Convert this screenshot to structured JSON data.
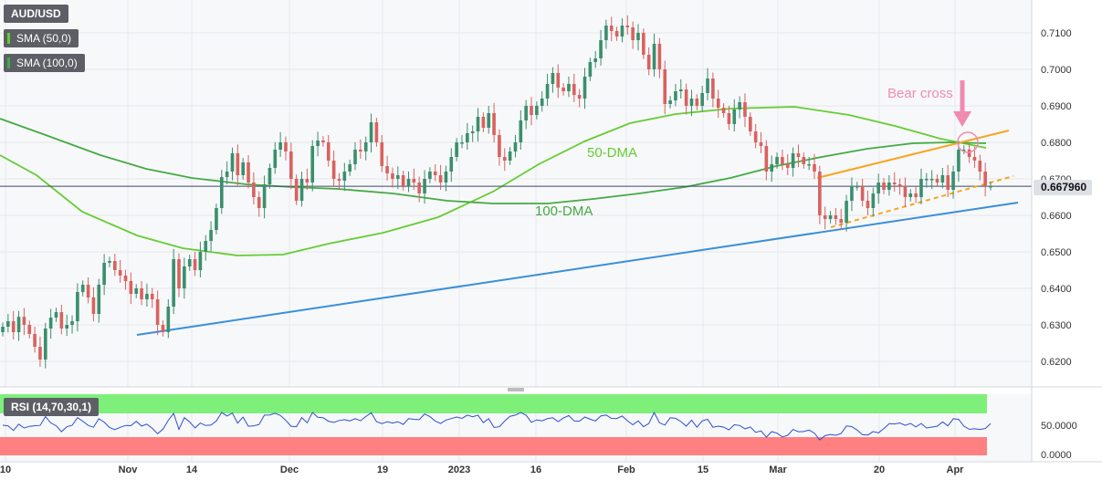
{
  "chart_data": {
    "type": "candlestick",
    "symbol": "AUD/USD",
    "indicators": [
      {
        "name": "SMA (50,0)",
        "color": "#66cc33"
      },
      {
        "name": "SMA (100,0)",
        "color": "#44aa44"
      }
    ],
    "current_price": "0.667960",
    "y_ticks": [
      "0.7100",
      "0.7000",
      "0.6900",
      "0.6800",
      "0.6700",
      "0.6600",
      "0.6500",
      "0.6400",
      "0.6300",
      "0.6200"
    ],
    "ylim": [
      0.617,
      0.7165
    ],
    "x_ticks": [
      "10",
      "Nov",
      "14",
      "Dec",
      "19",
      "2023",
      "16",
      "Feb",
      "15",
      "Mar",
      "20",
      "Apr"
    ],
    "annotations": {
      "bear_cross": "Bear cross",
      "dma50": "50-DMA",
      "dma100": "100-DMA"
    },
    "closes": [
      0.6295,
      0.631,
      0.628,
      0.6322,
      0.63,
      0.6275,
      0.624,
      0.6205,
      0.629,
      0.632,
      0.6335,
      0.629,
      0.63,
      0.631,
      0.639,
      0.641,
      0.6375,
      0.633,
      0.641,
      0.647,
      0.6475,
      0.645,
      0.6435,
      0.642,
      0.6385,
      0.64,
      0.637,
      0.6385,
      0.637,
      0.63,
      0.628,
      0.635,
      0.648,
      0.64,
      0.646,
      0.648,
      0.645,
      0.65,
      0.653,
      0.656,
      0.662,
      0.6705,
      0.672,
      0.677,
      0.671,
      0.6745,
      0.669,
      0.665,
      0.662,
      0.6685,
      0.673,
      0.678,
      0.68,
      0.6775,
      0.67,
      0.664,
      0.67,
      0.669,
      0.679,
      0.6805,
      0.68,
      0.675,
      0.67,
      0.6695,
      0.672,
      0.674,
      0.678,
      0.6775,
      0.68,
      0.6855,
      0.68,
      0.6735,
      0.6715,
      0.67,
      0.671,
      0.668,
      0.67,
      0.669,
      0.666,
      0.67,
      0.672,
      0.671,
      0.669,
      0.672,
      0.676,
      0.68,
      0.68,
      0.6825,
      0.683,
      0.687,
      0.684,
      0.688,
      0.682,
      0.676,
      0.675,
      0.6775,
      0.68,
      0.686,
      0.69,
      0.6875,
      0.69,
      0.692,
      0.696,
      0.699,
      0.695,
      0.694,
      0.696,
      0.693,
      0.692,
      0.698,
      0.702,
      0.703,
      0.708,
      0.712,
      0.7105,
      0.709,
      0.712,
      0.7115,
      0.708,
      0.71,
      0.704,
      0.7,
      0.707,
      0.7,
      0.6905,
      0.6915,
      0.694,
      0.6945,
      0.69,
      0.692,
      0.69,
      0.6935,
      0.6975,
      0.692,
      0.6895,
      0.688,
      0.685,
      0.689,
      0.691,
      0.687,
      0.683,
      0.68,
      0.679,
      0.672,
      0.674,
      0.676,
      0.674,
      0.673,
      0.677,
      0.676,
      0.674,
      0.674,
      0.672,
      0.66,
      0.659,
      0.66,
      0.659,
      0.658,
      0.664,
      0.668,
      0.668,
      0.664,
      0.662,
      0.666,
      0.669,
      0.667,
      0.669,
      0.6685,
      0.668,
      0.665,
      0.666,
      0.665,
      0.67,
      0.67,
      0.67,
      0.669,
      0.671,
      0.667,
      0.672,
      0.678,
      0.678,
      0.676,
      0.675,
      0.672,
      0.668,
      0.668
    ]
  }
}
